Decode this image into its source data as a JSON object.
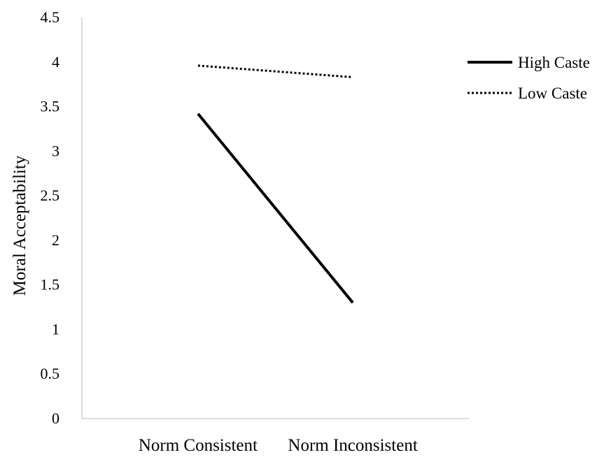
{
  "chart_data": {
    "type": "line",
    "title": "",
    "xlabel": "",
    "ylabel": "Moral Acceptability",
    "categories": [
      "Norm Consistent",
      "Norm Inconsistent"
    ],
    "ylim": [
      0,
      4.5
    ],
    "yticks": [
      "0",
      "0.5",
      "1",
      "1.5",
      "2",
      "2.5",
      "3",
      "3.5",
      "4",
      "4.5"
    ],
    "grid": false,
    "legend_position": "right",
    "series": [
      {
        "name": "High Caste",
        "values": [
          3.42,
          1.3
        ],
        "line_style": "solid",
        "color": "#000000"
      },
      {
        "name": "Low Caste",
        "values": [
          3.96,
          3.83
        ],
        "line_style": "dotted",
        "color": "#000000"
      }
    ]
  }
}
